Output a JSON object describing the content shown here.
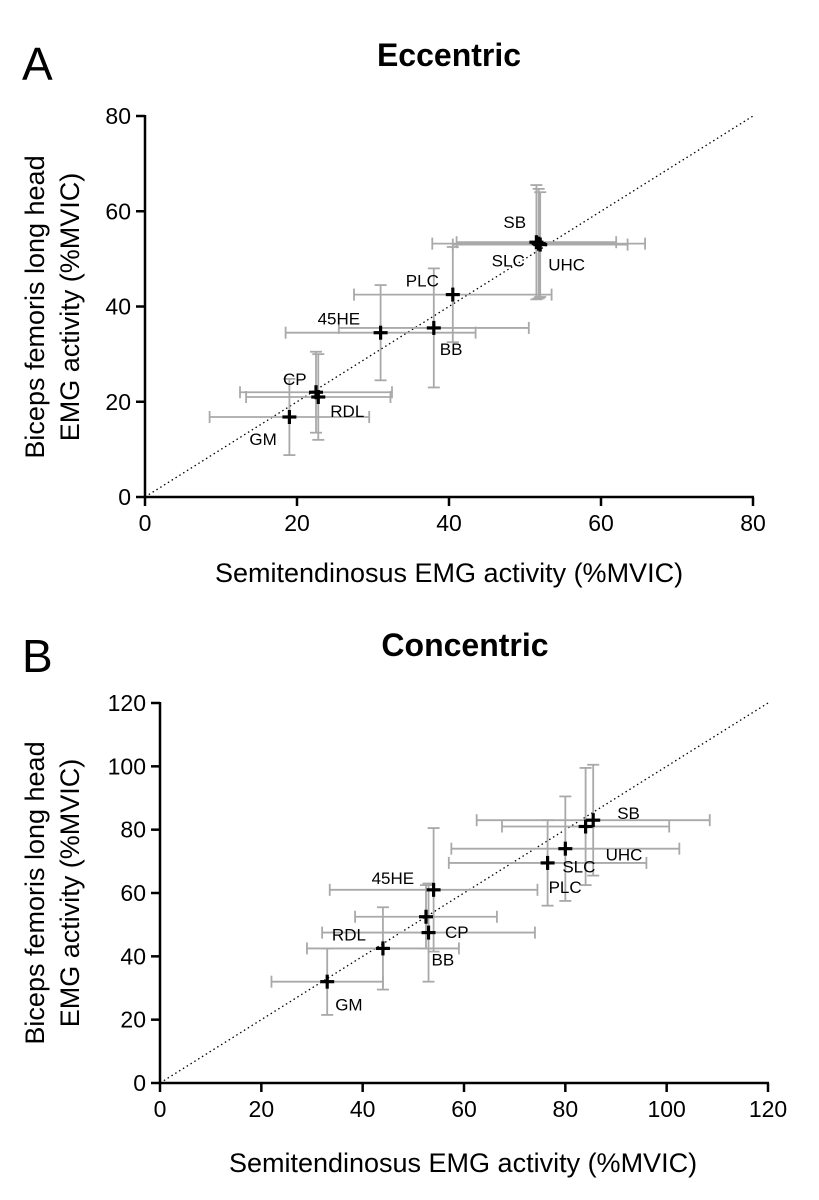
{
  "chart_data": [
    {
      "type": "scatter",
      "panel": "A",
      "title": "Eccentric",
      "xlabel": "Semitendinosus EMG activity (%MVIC)",
      "ylabel": [
        "Biceps femoris long head",
        "EMG activity (%MVIC)"
      ],
      "xlim": [
        0,
        80
      ],
      "ylim": [
        0,
        80
      ],
      "xticks": [
        0,
        20,
        40,
        60,
        80
      ],
      "yticks": [
        0,
        20,
        40,
        60,
        80
      ],
      "identity_line": true,
      "points": [
        {
          "label": "SB",
          "x": 51.5,
          "y": 53.5,
          "xerr": 10.5,
          "yerr": 12.0
        },
        {
          "label": "UHC",
          "x": 52.0,
          "y": 53.0,
          "xerr": 11.5,
          "yerr": 11.0
        },
        {
          "label": "SLC",
          "x": 51.8,
          "y": 53.2,
          "xerr": 14.0,
          "yerr": 11.5
        },
        {
          "label": "PLC",
          "x": 40.5,
          "y": 42.5,
          "xerr": 13.0,
          "yerr": 10.0
        },
        {
          "label": "BB",
          "x": 38.0,
          "y": 35.5,
          "xerr": 12.5,
          "yerr": 12.5
        },
        {
          "label": "45HE",
          "x": 31.0,
          "y": 34.5,
          "xerr": 12.5,
          "yerr": 10.0
        },
        {
          "label": "CP",
          "x": 22.5,
          "y": 22.0,
          "xerr": 10.0,
          "yerr": 8.5
        },
        {
          "label": "RDL",
          "x": 22.8,
          "y": 21.0,
          "xerr": 9.5,
          "yerr": 9.0
        },
        {
          "label": "GM",
          "x": 19.0,
          "y": 16.8,
          "xerr": 10.5,
          "yerr": 8.0
        }
      ]
    },
    {
      "type": "scatter",
      "panel": "B",
      "title": "Concentric",
      "xlabel": "Semitendinosus EMG activity (%MVIC)",
      "ylabel": [
        "Biceps femoris long head",
        "EMG activity (%MVIC)"
      ],
      "xlim": [
        0,
        120
      ],
      "ylim": [
        0,
        120
      ],
      "xticks": [
        0,
        20,
        40,
        60,
        80,
        100,
        120
      ],
      "yticks": [
        0,
        20,
        40,
        60,
        80,
        100,
        120
      ],
      "identity_line": true,
      "points": [
        {
          "label": "SB",
          "x": 85.5,
          "y": 83.0,
          "xerr": 23.0,
          "yerr": 17.5
        },
        {
          "label": "UHC",
          "x": 84.0,
          "y": 81.0,
          "xerr": 16.5,
          "yerr": 18.5
        },
        {
          "label": "SLC",
          "x": 80.0,
          "y": 74.0,
          "xerr": 22.5,
          "yerr": 16.5
        },
        {
          "label": "PLC",
          "x": 76.5,
          "y": 69.5,
          "xerr": 19.5,
          "yerr": 13.5
        },
        {
          "label": "45HE",
          "x": 54.0,
          "y": 61.0,
          "xerr": 20.5,
          "yerr": 19.5
        },
        {
          "label": "CP",
          "x": 52.5,
          "y": 52.5,
          "xerr": 14.0,
          "yerr": 10.0
        },
        {
          "label": "BB",
          "x": 53.0,
          "y": 47.5,
          "xerr": 21.0,
          "yerr": 15.5
        },
        {
          "label": "RDL",
          "x": 44.0,
          "y": 42.5,
          "xerr": 15.0,
          "yerr": 13.0
        },
        {
          "label": "GM",
          "x": 33.0,
          "y": 32.0,
          "xerr": 11.0,
          "yerr": 10.5
        }
      ]
    }
  ]
}
